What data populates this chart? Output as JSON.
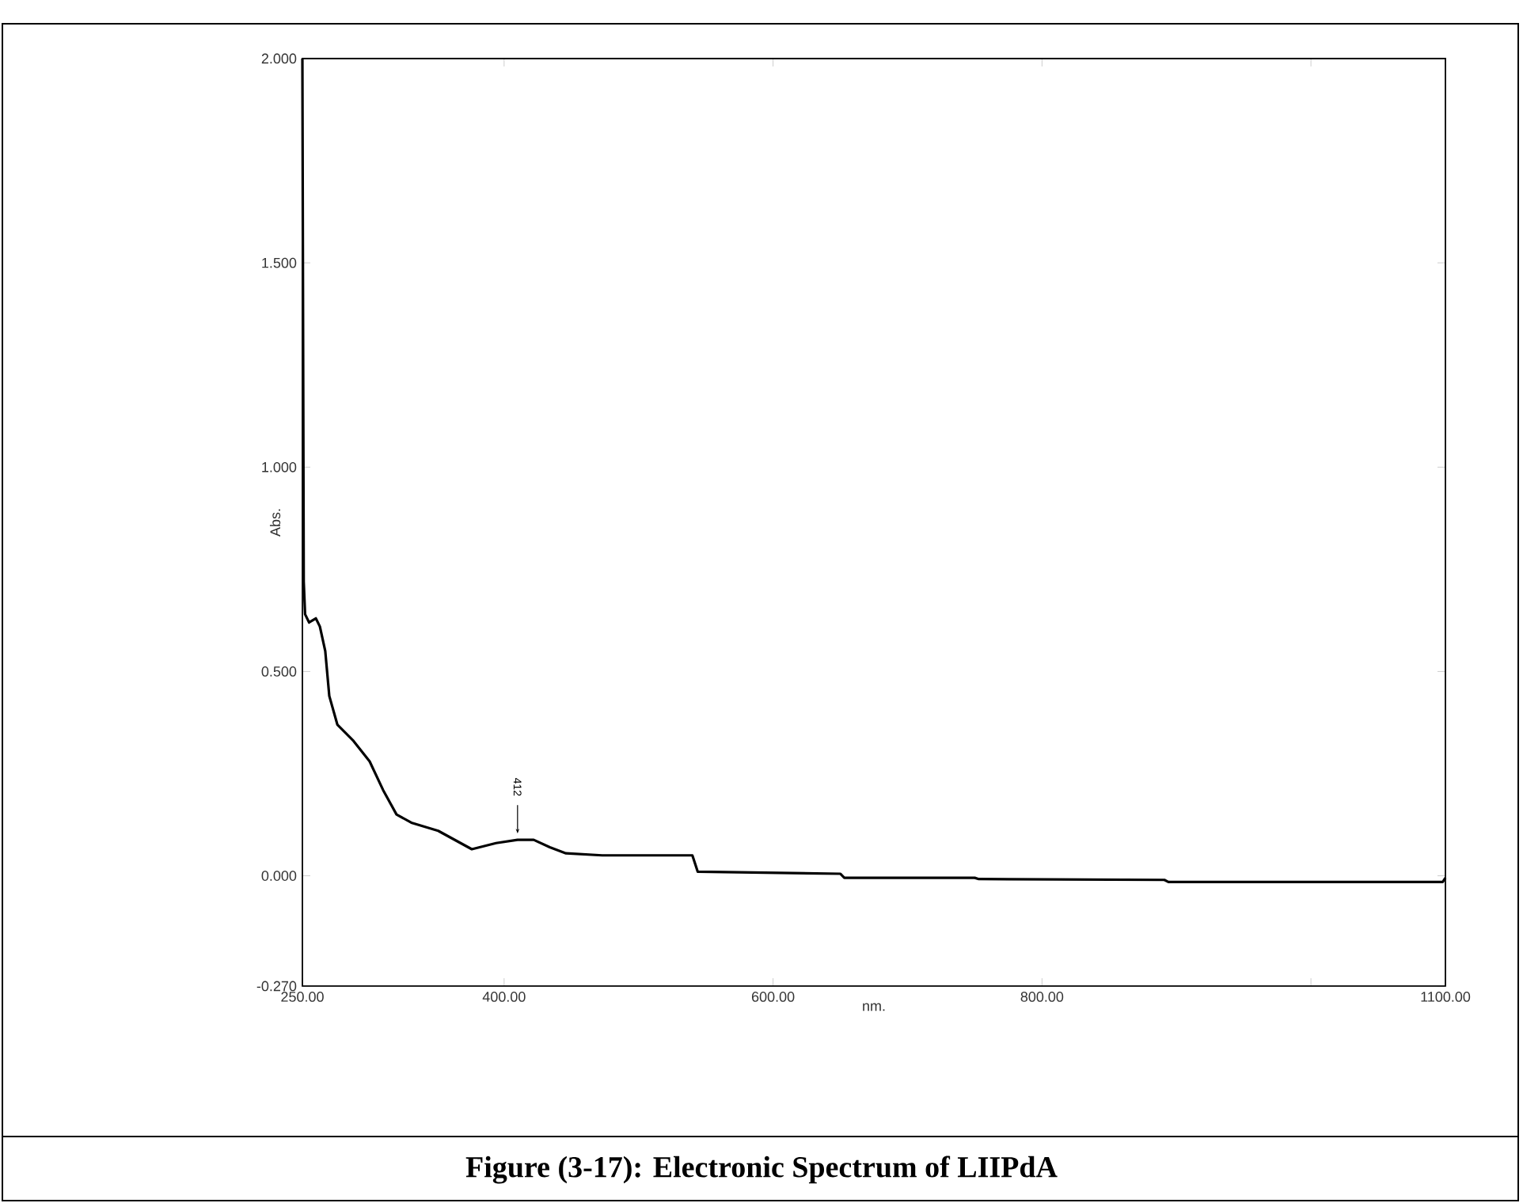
{
  "chart_data": {
    "type": "line",
    "title": "Figure (3-17): Electronic Spectrum of LIIPdA",
    "xlabel": "nm.",
    "ylabel": "Abs.",
    "xlim": [
      250,
      1100
    ],
    "ylim": [
      -0.27,
      2.0
    ],
    "xticks": [
      {
        "value": 250,
        "label": "250.00"
      },
      {
        "value": 400,
        "label": "400.00"
      },
      {
        "value": 600,
        "label": "600.00"
      },
      {
        "value": 800,
        "label": "800.00"
      },
      {
        "value": 1000,
        "label": null
      },
      {
        "value": 1100,
        "label": "1100.00"
      }
    ],
    "yticks": [
      {
        "value": -0.27,
        "label": "-0.270"
      },
      {
        "value": 0,
        "label": "0.000"
      },
      {
        "value": 0.5,
        "label": "0.500"
      },
      {
        "value": 1.0,
        "label": "1.000"
      },
      {
        "value": 1.5,
        "label": "1.500"
      },
      {
        "value": 2.0,
        "label": "2.000"
      }
    ],
    "annotations": [
      {
        "text": "412",
        "x": 410,
        "y": 0.088
      }
    ],
    "series": [
      {
        "color": "#000000",
        "x": [
          250,
          251,
          252,
          255,
          260,
          263,
          267,
          270,
          276,
          288,
          300,
          310,
          320,
          331,
          351,
          376,
          394,
          410,
          422,
          434,
          446,
          473,
          540,
          544,
          650,
          653,
          750,
          753,
          891,
          894,
          1098,
          1100
        ],
        "values": [
          2.0,
          0.72,
          0.64,
          0.62,
          0.63,
          0.61,
          0.55,
          0.44,
          0.37,
          0.33,
          0.28,
          0.21,
          0.15,
          0.13,
          0.11,
          0.065,
          0.08,
          0.088,
          0.088,
          0.07,
          0.055,
          0.05,
          0.05,
          0.01,
          0.005,
          -0.005,
          -0.005,
          -0.008,
          -0.01,
          -0.015,
          -0.015,
          -0.005
        ]
      }
    ]
  }
}
